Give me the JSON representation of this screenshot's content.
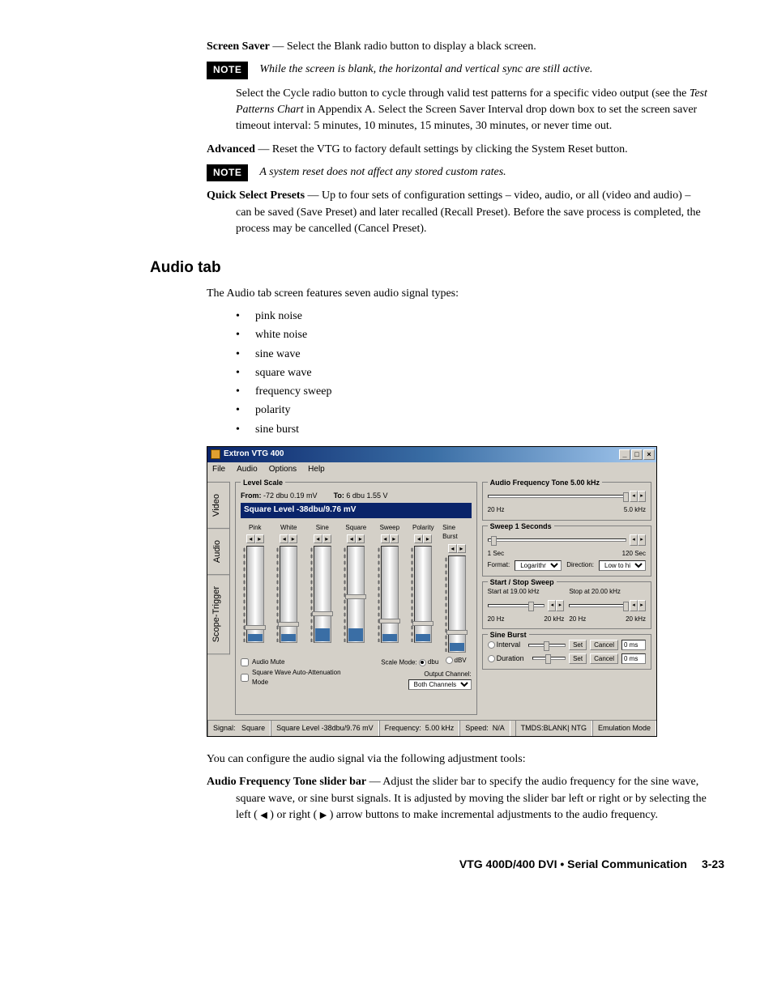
{
  "para_screen_saver": {
    "label": "Screen Saver",
    "text": " — Select the Blank radio button to display a black screen."
  },
  "note1": {
    "badge": "NOTE",
    "text": "While the screen is blank, the horizontal and vertical sync are still active."
  },
  "para_cycle": {
    "pre": "Select the Cycle radio button to cycle through valid test patterns for a specific video output (see the ",
    "em": "Test Patterns Chart",
    "post": " in Appendix A.  Select the Screen Saver Interval drop down box to set the screen saver timeout interval: 5 minutes, 10 minutes, 15 minutes, 30 minutes, or never time out."
  },
  "para_advanced": {
    "label": "Advanced",
    "text": " — Reset the VTG to factory default settings by clicking the System Reset button."
  },
  "note2": {
    "badge": "NOTE",
    "text": "A system reset does not affect any stored custom rates."
  },
  "para_quick": {
    "label": "Quick Select Presets",
    "text": " — Up to four sets of configuration settings – video, audio, or all (video and audio) – can be saved (Save Preset) and later recalled (Recall Preset).  Before the save process is completed, the process may be cancelled (Cancel Preset)."
  },
  "audio_heading": "Audio tab",
  "audio_intro": "The Audio tab screen features seven audio signal types:",
  "audio_list": [
    "pink noise",
    "white noise",
    "sine wave",
    "square wave",
    "frequency sweep",
    "polarity",
    "sine burst"
  ],
  "para_configure": "You can configure the audio signal via the following adjustment tools:",
  "para_freq_tool": {
    "label": "Audio Frequency Tone slider bar",
    "pre": " — Adjust the slider bar to specify the audio frequency for the sine wave, square wave, or sine burst signals.  It is adjusted by moving the slider bar left or right or by selecting the left ( ",
    "left_arrow": "◀",
    "mid": " ) or right ( ",
    "right_arrow": "▶",
    "post": " ) arrow buttons to make incremental adjustments to the audio frequency."
  },
  "footer": {
    "title": "VTG 400D/400 DVI • Serial Communication",
    "page": "3-23"
  },
  "app": {
    "title": "Extron VTG 400",
    "menus": [
      "File",
      "Audio",
      "Options",
      "Help"
    ],
    "tabs": [
      "Video",
      "Audio",
      "Scope-Trigger"
    ],
    "active_tab": "Audio",
    "level_scale": {
      "legend": "Level Scale",
      "from_label": "From:",
      "from_value": "-72 dbu  0.19 mV",
      "to_label": "To:",
      "to_value": "6 dbu  1.55 V",
      "readout": "Square Level -38dbu/9.76 mV",
      "slider_columns": [
        {
          "name": "Pink",
          "thumb_pct": 82,
          "fill": "short"
        },
        {
          "name": "White",
          "thumb_pct": 79,
          "fill": "short"
        },
        {
          "name": "Sine",
          "thumb_pct": 68,
          "fill": "tall"
        },
        {
          "name": "Square",
          "thumb_pct": 50,
          "fill": "tall"
        },
        {
          "name": "Sweep",
          "thumb_pct": 75,
          "fill": "short"
        },
        {
          "name": "Polarity",
          "thumb_pct": 78,
          "fill": "short"
        },
        {
          "name": "Sine Burst",
          "thumb_pct": 77,
          "fill": "short"
        }
      ],
      "audio_mute": "Audio Mute",
      "sq_atten": "Square Wave Auto-Attenuation Mode",
      "scale_mode_label": "Scale Mode:",
      "scale_mode_opts": [
        "dbu",
        "dBV"
      ],
      "scale_mode_sel": "dbu",
      "out_ch_label": "Output Channel:",
      "out_ch_value": "Both Channels"
    },
    "freq_tone": {
      "legend": "Audio Frequency Tone  5.00 kHz",
      "low": "20 Hz",
      "high": "5.0 kHz",
      "thumb_pct": 98
    },
    "sweep": {
      "legend": "Sweep  1 Seconds",
      "low": "1 Sec",
      "high": "120 Sec",
      "thumb_pct": 2,
      "format_label": "Format:",
      "format_value": "Logarithmic",
      "direction_label": "Direction:",
      "direction_value": "Low to high"
    },
    "startstop": {
      "legend": "Start / Stop Sweep",
      "start_label": "Start at 19.00 kHz",
      "stop_label": "Stop at 20.00 kHz",
      "low": "20 Hz",
      "high": "20 kHz",
      "start_thumb_pct": 72,
      "stop_thumb_pct": 96
    },
    "sine_burst": {
      "legend": "Sine Burst",
      "interval_label": "Interval",
      "duration_label": "Duration",
      "set": "Set",
      "cancel": "Cancel",
      "ms": "0 ms"
    },
    "status": {
      "signal_lbl": "Signal:",
      "signal_val": "Square",
      "level": "Square Level -38dbu/9.76 mV",
      "freq_lbl": "Frequency:",
      "freq_val": "5.00 kHz",
      "speed_lbl": "Speed:",
      "speed_val": "N/A",
      "tmds": "TMDS:BLANK| NTG",
      "mode": "Emulation Mode"
    }
  }
}
